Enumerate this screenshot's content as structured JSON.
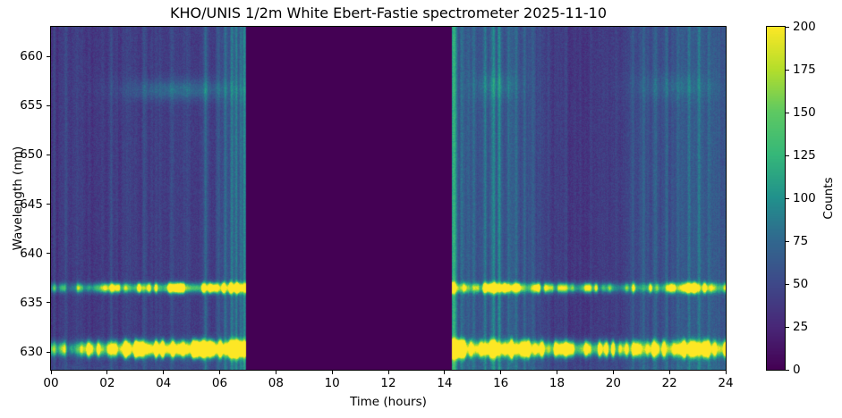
{
  "chart_data": {
    "type": "heatmap",
    "title": "KHO/UNIS 1/2m White Ebert-Fastie spectrometer 2025-11-10",
    "xlabel": "Time (hours)",
    "ylabel": "Wavelength (nm)",
    "colorbar_label": "Counts",
    "x_range": [
      0,
      24
    ],
    "y_range": [
      628.2,
      663.0
    ],
    "clim": [
      0,
      200
    ],
    "grid": false,
    "colormap": "viridis",
    "colormap_stops": [
      [
        0,
        "#440154"
      ],
      [
        0.125,
        "#482878"
      ],
      [
        0.25,
        "#3e4989"
      ],
      [
        0.375,
        "#31688e"
      ],
      [
        0.5,
        "#21918c"
      ],
      [
        0.625,
        "#35b779"
      ],
      [
        0.75,
        "#5ec962"
      ],
      [
        0.875,
        "#b5de2b"
      ],
      [
        1,
        "#fde725"
      ]
    ],
    "x_ticks": {
      "values": [
        0,
        2,
        4,
        6,
        8,
        10,
        12,
        14,
        16,
        18,
        20,
        22,
        24
      ],
      "labels": [
        "00",
        "02",
        "04",
        "06",
        "08",
        "10",
        "12",
        "14",
        "16",
        "18",
        "20",
        "22",
        "24"
      ]
    },
    "y_ticks": {
      "values": [
        630,
        635,
        640,
        645,
        650,
        655,
        660
      ],
      "labels": [
        "630",
        "635",
        "640",
        "645",
        "650",
        "655",
        "660"
      ]
    },
    "colorbar_ticks": {
      "values": [
        0,
        25,
        50,
        75,
        100,
        125,
        150,
        175,
        200
      ],
      "labels": [
        "0",
        "25",
        "50",
        "75",
        "100",
        "125",
        "150",
        "175",
        "200"
      ]
    },
    "data_gap_hours": [
      6.93,
      14.26
    ],
    "background_profile": [
      [
        0,
        36
      ],
      [
        0.5,
        36
      ],
      [
        1,
        38
      ],
      [
        2,
        40
      ],
      [
        3,
        42
      ],
      [
        4,
        41
      ],
      [
        5,
        39
      ],
      [
        5.4,
        46
      ],
      [
        5.7,
        42
      ],
      [
        6.1,
        50
      ],
      [
        6.5,
        56
      ],
      [
        6.93,
        60
      ],
      [
        14.26,
        72
      ],
      [
        14.45,
        64
      ],
      [
        15,
        56
      ],
      [
        15.6,
        62
      ],
      [
        16,
        60
      ],
      [
        16.5,
        56
      ],
      [
        17,
        52
      ],
      [
        17.4,
        46
      ],
      [
        18,
        40
      ],
      [
        18.6,
        38
      ],
      [
        19.4,
        37
      ],
      [
        20,
        40
      ],
      [
        20.4,
        46
      ],
      [
        20.8,
        52
      ],
      [
        21.2,
        56
      ],
      [
        21.6,
        58
      ],
      [
        22,
        57
      ],
      [
        22.5,
        59
      ],
      [
        23,
        60
      ],
      [
        23.5,
        59
      ],
      [
        24,
        58
      ]
    ],
    "vertical_streaks": [
      [
        0.12,
        0.04,
        14
      ],
      [
        0.55,
        0.04,
        16
      ],
      [
        0.95,
        0.05,
        12
      ],
      [
        1.35,
        0.04,
        10
      ],
      [
        2.15,
        0.04,
        14
      ],
      [
        2.6,
        0.04,
        10
      ],
      [
        3.3,
        0.04,
        12
      ],
      [
        3.75,
        0.04,
        10
      ],
      [
        4.3,
        0.04,
        10
      ],
      [
        4.85,
        0.04,
        12
      ],
      [
        5.5,
        0.05,
        34
      ],
      [
        5.95,
        0.04,
        14
      ],
      [
        6.2,
        0.04,
        26
      ],
      [
        6.42,
        0.04,
        30
      ],
      [
        6.6,
        0.035,
        28
      ],
      [
        6.75,
        0.04,
        34
      ],
      [
        6.88,
        0.035,
        30
      ],
      [
        14.35,
        0.07,
        55
      ],
      [
        14.6,
        0.04,
        24
      ],
      [
        15.05,
        0.04,
        18
      ],
      [
        15.45,
        0.04,
        22
      ],
      [
        15.75,
        0.05,
        38
      ],
      [
        15.95,
        0.04,
        32
      ],
      [
        16.25,
        0.04,
        22
      ],
      [
        16.55,
        0.04,
        24
      ],
      [
        16.85,
        0.04,
        20
      ],
      [
        17.15,
        0.04,
        16
      ],
      [
        17.7,
        0.04,
        12
      ],
      [
        18.3,
        0.04,
        10
      ],
      [
        19.2,
        0.04,
        9
      ],
      [
        20.1,
        0.04,
        10
      ],
      [
        20.7,
        0.04,
        16
      ],
      [
        21.1,
        0.04,
        18
      ],
      [
        21.5,
        0.04,
        16
      ],
      [
        21.9,
        0.04,
        14
      ],
      [
        22.3,
        0.04,
        18
      ],
      [
        22.7,
        0.04,
        16
      ],
      [
        23.05,
        0.04,
        20
      ],
      [
        23.4,
        0.04,
        16
      ],
      [
        23.75,
        0.04,
        16
      ]
    ],
    "emission_lines": [
      {
        "name": "OI 630 nm red line",
        "wavelength_nm": 630.3,
        "sigma_nm": 0.5,
        "intensity_profile": [
          [
            0,
            100
          ],
          [
            0.6,
            100
          ],
          [
            0.8,
            140
          ],
          [
            0.95,
            240
          ],
          [
            1.2,
            300
          ],
          [
            1.5,
            260
          ],
          [
            1.8,
            220
          ],
          [
            2.1,
            280
          ],
          [
            2.4,
            250
          ],
          [
            2.7,
            330
          ],
          [
            3,
            360
          ],
          [
            3.5,
            380
          ],
          [
            4,
            400
          ],
          [
            4.5,
            380
          ],
          [
            5,
            400
          ],
          [
            5.5,
            420
          ],
          [
            6,
            420
          ],
          [
            6.5,
            430
          ],
          [
            6.93,
            430
          ],
          [
            14.26,
            440
          ],
          [
            14.6,
            400
          ],
          [
            14.9,
            260
          ],
          [
            15.2,
            280
          ],
          [
            15.5,
            420
          ],
          [
            15.8,
            430
          ],
          [
            16.1,
            300
          ],
          [
            16.4,
            410
          ],
          [
            16.8,
            390
          ],
          [
            17.1,
            270
          ],
          [
            17.4,
            260
          ],
          [
            17.8,
            210
          ],
          [
            18.1,
            230
          ],
          [
            18.5,
            210
          ],
          [
            18.9,
            190
          ],
          [
            19.3,
            210
          ],
          [
            19.7,
            190
          ],
          [
            20.1,
            200
          ],
          [
            20.5,
            210
          ],
          [
            20.9,
            240
          ],
          [
            21.3,
            230
          ],
          [
            21.7,
            220
          ],
          [
            22.1,
            280
          ],
          [
            22.45,
            400
          ],
          [
            22.8,
            420
          ],
          [
            23.1,
            340
          ],
          [
            23.4,
            260
          ],
          [
            23.7,
            270
          ],
          [
            24,
            260
          ]
        ]
      },
      {
        "name": "OI 636.4 nm line",
        "wavelength_nm": 636.5,
        "sigma_nm": 0.33,
        "intensity_profile": [
          [
            0,
            60
          ],
          [
            0.7,
            80
          ],
          [
            1,
            130
          ],
          [
            1.4,
            150
          ],
          [
            1.8,
            120
          ],
          [
            2.2,
            160
          ],
          [
            2.6,
            180
          ],
          [
            3,
            140
          ],
          [
            3.4,
            190
          ],
          [
            3.8,
            150
          ],
          [
            4.2,
            180
          ],
          [
            4.6,
            210
          ],
          [
            5,
            230
          ],
          [
            5.3,
            180
          ],
          [
            5.6,
            250
          ],
          [
            6,
            280
          ],
          [
            6.4,
            300
          ],
          [
            6.93,
            290
          ],
          [
            14.26,
            310
          ],
          [
            14.55,
            230
          ],
          [
            14.9,
            130
          ],
          [
            15.3,
            140
          ],
          [
            15.6,
            270
          ],
          [
            15.9,
            300
          ],
          [
            16.2,
            190
          ],
          [
            16.6,
            200
          ],
          [
            17,
            170
          ],
          [
            17.4,
            150
          ],
          [
            17.8,
            130
          ],
          [
            18.2,
            130
          ],
          [
            18.7,
            140
          ],
          [
            19.2,
            115
          ],
          [
            19.7,
            120
          ],
          [
            20.2,
            115
          ],
          [
            20.7,
            125
          ],
          [
            21.2,
            130
          ],
          [
            21.7,
            125
          ],
          [
            22.1,
            160
          ],
          [
            22.45,
            260
          ],
          [
            22.75,
            280
          ],
          [
            23.05,
            220
          ],
          [
            23.4,
            160
          ],
          [
            23.8,
            165
          ],
          [
            24,
            160
          ]
        ]
      }
    ],
    "diffuse_features": [
      {
        "t": 4.6,
        "t_sigma": 1.4,
        "wl": 656.6,
        "wl_sigma": 0.75,
        "amp": 36
      },
      {
        "t": 15.8,
        "t_sigma": 0.6,
        "wl": 657.0,
        "wl_sigma": 0.9,
        "amp": 20
      },
      {
        "t": 22.2,
        "t_sigma": 1.1,
        "wl": 656.9,
        "wl_sigma": 0.9,
        "amp": 16
      }
    ],
    "bottom_edge_glow": {
      "below_nm": 629.4,
      "amp": 12
    },
    "noise": {
      "pixel": 9,
      "column": 0.16,
      "seed": 12345
    }
  },
  "figure": {
    "background": "#ffffff",
    "text_color": "#000000",
    "frame_color": "#000000"
  }
}
